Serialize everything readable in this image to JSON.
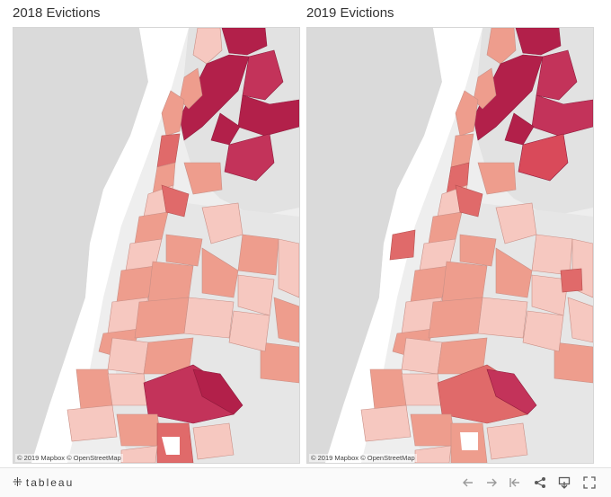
{
  "panels": [
    {
      "title": "2018 Evictions",
      "attribution": "© 2019 Mapbox © OpenStreetMap"
    },
    {
      "title": "2019 Evictions",
      "attribution": "© 2019 Mapbox © OpenStreetMap"
    }
  ],
  "toolbar": {
    "brand": "tableau",
    "brand_icon": "tableau-plus-icon",
    "buttons": [
      "undo-icon",
      "redo-icon",
      "revert-icon",
      "share-icon",
      "download-icon",
      "fullscreen-icon"
    ]
  },
  "colors": {
    "water": "#ffffff",
    "land": "#dcdcdc",
    "frame_bg": "#eeeeee",
    "low": "#f6c8c0",
    "mid": "#ee9d8d",
    "high": "#e06a6a",
    "highest": "#b2204a"
  }
}
